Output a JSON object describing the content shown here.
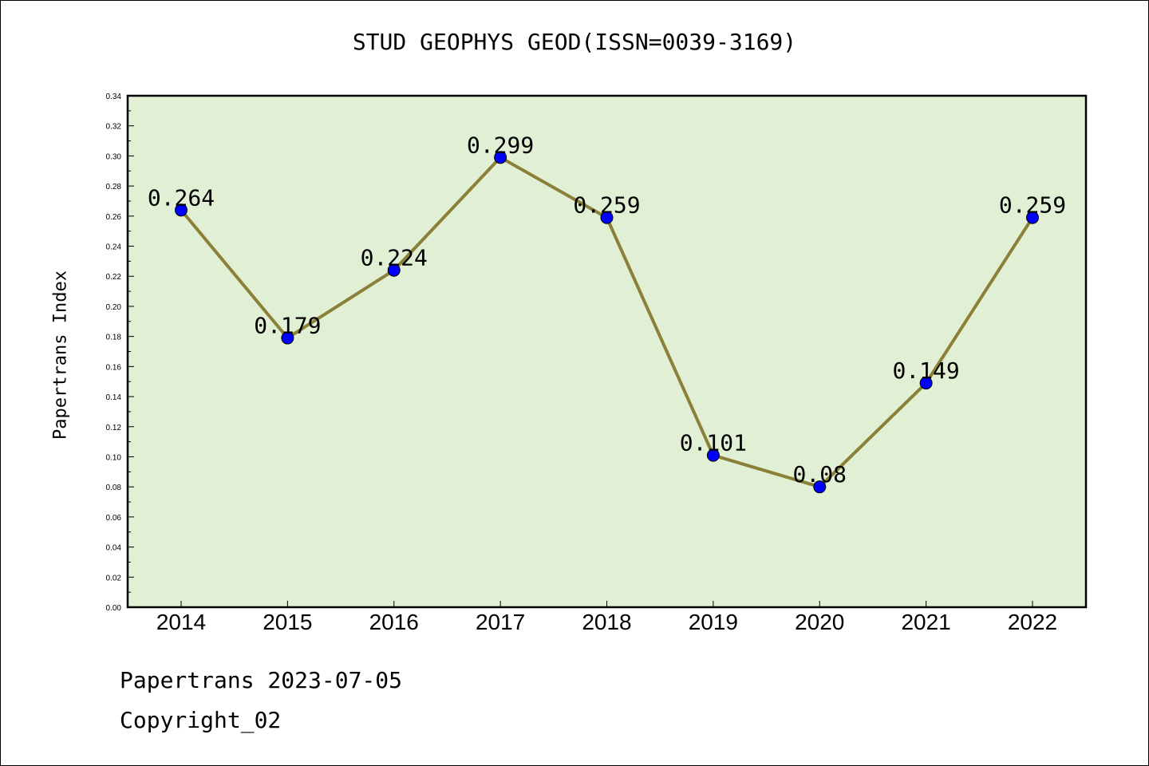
{
  "title": "STUD GEOPHYS GEOD(ISSN=0039-3169)",
  "footer": {
    "line1": "Papertrans 2023-07-05",
    "line2": "Copyright_02"
  },
  "colors": {
    "plot_bg": "#e1efd5",
    "line": "#8b8038",
    "marker": "#0000ff"
  },
  "chart_data": {
    "type": "line",
    "title": "STUD GEOPHYS GEOD(ISSN=0039-3169)",
    "xlabel": "",
    "ylabel": "Papertrans Index",
    "categories": [
      "2014",
      "2015",
      "2016",
      "2017",
      "2018",
      "2019",
      "2020",
      "2021",
      "2022"
    ],
    "series": [
      {
        "values": [
          0.264,
          0.179,
          0.224,
          0.299,
          0.259,
          0.101,
          0.08,
          0.149,
          0.259
        ]
      }
    ],
    "data_labels": [
      "0.264",
      "0.179",
      "0.224",
      "0.299",
      "0.259",
      "0.101",
      "0.08",
      "0.149",
      "0.259"
    ],
    "ylim": [
      0,
      0.34
    ],
    "yticks": [
      "0.00",
      "0.02",
      "0.04",
      "0.06",
      "0.08",
      "0.10",
      "0.12",
      "0.14",
      "0.16",
      "0.18",
      "0.20",
      "0.22",
      "0.24",
      "0.26",
      "0.28",
      "0.30",
      "0.32",
      "0.34"
    ],
    "grid": false,
    "legend": "none"
  }
}
